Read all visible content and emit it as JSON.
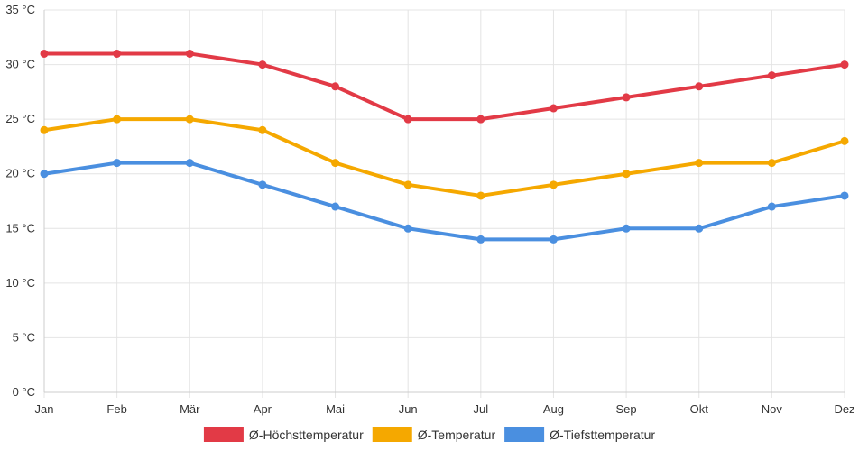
{
  "chart_data": {
    "type": "line",
    "categories": [
      "Jan",
      "Feb",
      "Mär",
      "Apr",
      "Mai",
      "Jun",
      "Jul",
      "Aug",
      "Sep",
      "Okt",
      "Nov",
      "Dez"
    ],
    "series": [
      {
        "name": "Ø-Höchsttemperatur",
        "color": "#e23a46",
        "values": [
          31,
          31,
          31,
          30,
          28,
          25,
          25,
          26,
          27,
          28,
          29,
          30
        ]
      },
      {
        "name": "Ø-Temperatur",
        "color": "#f5a800",
        "values": [
          24,
          25,
          25,
          24,
          21,
          19,
          18,
          19,
          20,
          21,
          21,
          23
        ]
      },
      {
        "name": "Ø-Tiefsttemperatur",
        "color": "#4a8fe0",
        "values": [
          20,
          21,
          21,
          19,
          17,
          15,
          14,
          14,
          15,
          15,
          17,
          18
        ]
      }
    ],
    "ylim": [
      0,
      35
    ],
    "yticks": [
      0,
      5,
      10,
      15,
      20,
      25,
      30,
      35
    ],
    "ytick_labels": [
      "0 °C",
      "5 °C",
      "10 °C",
      "15 °C",
      "20 °C",
      "25 °C",
      "30 °C",
      "35 °C"
    ],
    "grid": true,
    "legend": "bottom-center"
  }
}
